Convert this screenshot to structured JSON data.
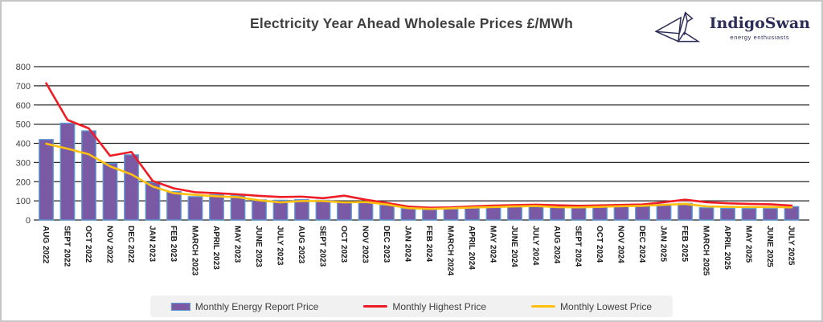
{
  "header": {
    "title": "Electricity Year Ahead Wholesale Prices £/MWh"
  },
  "logo": {
    "brand": "IndigoSwan",
    "tagline": "energy enthusiasts",
    "color": "#2d2d5a",
    "icon": "origami-swan-icon"
  },
  "chart_data": {
    "type": "bar",
    "title": "Electricity Year Ahead Wholesale Prices £/MWh",
    "xlabel": "",
    "ylabel": "",
    "ylim": [
      0,
      800
    ],
    "ytick_step": 100,
    "grid": "horizontal",
    "legend_position": "bottom",
    "categories": [
      "AUG 2022",
      "SEPT 2022",
      "OCT 2022",
      "NOV 2022",
      "DEC 2022",
      "JAN 2023",
      "FEB 2023",
      "MARCH 2023",
      "APRIL 2023",
      "MAY 2023",
      "JUNE 2023",
      "JULY 2023",
      "AUG 2023",
      "SEPT 2023",
      "OCT 2023",
      "NOV 2023",
      "DEC 2023",
      "JAN 2024",
      "FEB 2024",
      "MARCH 2024",
      "APRIL 2024",
      "MAY 2024",
      "JUNE 2024",
      "JULY 2024",
      "AUG 2024",
      "SEPT 2024",
      "OCT 2024",
      "NOV 2024",
      "DEC 2024",
      "JAN 2025",
      "FEB 2025",
      "MARCH 2025",
      "APRIL 2025",
      "MAY 2025",
      "JUNE 2025",
      "JULY 2025"
    ],
    "series": [
      {
        "name": "Monthly Energy Report Price",
        "type": "bar",
        "color": "#7b5aa5",
        "border_color": "#5b9bd5",
        "values": [
          420,
          505,
          465,
          295,
          340,
          195,
          148,
          122,
          132,
          127,
          105,
          103,
          106,
          103,
          95,
          90,
          78,
          60,
          55,
          58,
          62,
          67,
          71,
          74,
          71,
          68,
          71,
          74,
          76,
          82,
          87,
          64,
          61,
          60,
          61,
          70
        ]
      },
      {
        "name": "Monthly Highest Price",
        "type": "line",
        "color": "#ee1c25",
        "values": [
          713,
          522,
          478,
          335,
          355,
          204,
          165,
          145,
          140,
          134,
          126,
          120,
          122,
          114,
          127,
          106,
          89,
          70,
          64,
          66,
          71,
          75,
          78,
          80,
          77,
          74,
          76,
          79,
          81,
          93,
          106,
          93,
          87,
          84,
          82,
          75
        ]
      },
      {
        "name": "Monthly Lowest Price",
        "type": "line",
        "color": "#ffc010",
        "values": [
          398,
          372,
          343,
          280,
          238,
          175,
          140,
          131,
          124,
          119,
          103,
          92,
          99,
          99,
          92,
          94,
          81,
          62,
          58,
          61,
          65,
          68,
          71,
          73,
          67,
          66,
          69,
          72,
          74,
          79,
          84,
          71,
          69,
          68,
          68,
          66
        ]
      }
    ]
  }
}
